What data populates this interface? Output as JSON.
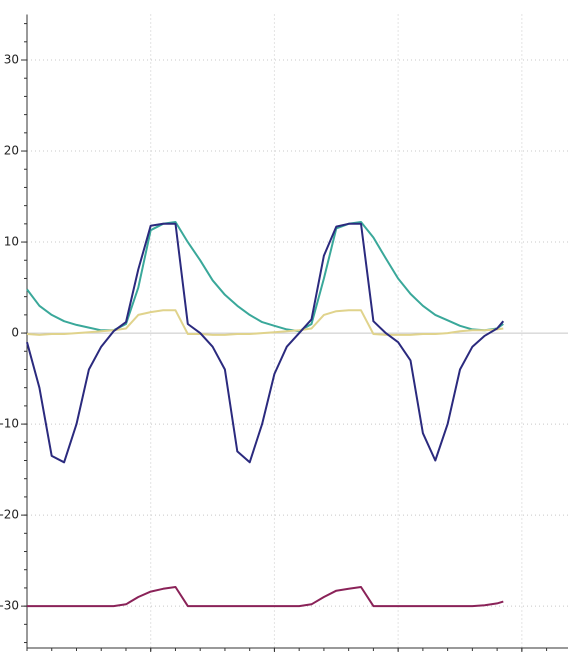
{
  "chart_data": {
    "type": "line",
    "x": [
      0,
      0.1,
      0.2,
      0.3,
      0.4,
      0.5,
      0.6,
      0.7,
      0.8,
      0.9,
      1.0,
      1.1,
      1.2,
      1.3,
      1.4,
      1.5,
      1.6,
      1.7,
      1.8,
      1.9,
      2.0,
      2.1,
      2.2,
      2.3,
      2.4,
      2.5,
      2.6,
      2.7,
      2.8,
      2.9,
      3.0,
      3.1,
      3.2,
      3.3,
      3.4,
      3.5,
      3.6,
      3.7,
      3.8,
      3.85
    ],
    "series": [
      {
        "color": "#3aa89a",
        "values": [
          4.8,
          3,
          2,
          1.3,
          0.9,
          0.6,
          0.3,
          0.3,
          1,
          5,
          11.3,
          12,
          12.2,
          10,
          8,
          5.8,
          4.2,
          3,
          2,
          1.2,
          0.8,
          0.4,
          0.2,
          1,
          6,
          11.5,
          12,
          12.2,
          10.5,
          8.2,
          6,
          4.3,
          3,
          2,
          1.4,
          0.8,
          0.4,
          0.3,
          0.5,
          1
        ]
      },
      {
        "color": "#e0d38c",
        "values": [
          -0.1,
          -0.2,
          -0.1,
          -0.1,
          0,
          0.1,
          0.2,
          0.3,
          0.5,
          2,
          2.3,
          2.5,
          2.5,
          -0.1,
          -0.1,
          -0.2,
          -0.2,
          -0.1,
          -0.1,
          0,
          0.1,
          0.2,
          0.3,
          0.5,
          2,
          2.4,
          2.5,
          2.5,
          -0.1,
          -0.2,
          -0.2,
          -0.2,
          -0.1,
          -0.1,
          0,
          0.2,
          0.3,
          0.3,
          0.4,
          0.5
        ]
      },
      {
        "color": "#2b2a7e",
        "values": [
          -1,
          -6,
          -13.5,
          -14.2,
          -10,
          -4,
          -1.5,
          0.2,
          1.2,
          7,
          11.8,
          12,
          12,
          1,
          0,
          -1.5,
          -4,
          -13,
          -14.2,
          -10,
          -4.5,
          -1.5,
          0,
          1.5,
          8.5,
          11.7,
          12,
          12,
          1.3,
          0,
          -1,
          -3,
          -11,
          -14,
          -10,
          -4,
          -1.5,
          -0.3,
          0.5,
          1.3
        ]
      },
      {
        "color": "#8a2258",
        "values": [
          -30,
          -30,
          -30,
          -30,
          -30,
          -30,
          -30,
          -30,
          -29.8,
          -29,
          -28.4,
          -28.1,
          -27.9,
          -30,
          -30,
          -30,
          -30,
          -30,
          -30,
          -30,
          -30,
          -30,
          -30,
          -29.8,
          -29,
          -28.3,
          -28.1,
          -27.9,
          -30,
          -30,
          -30,
          -30,
          -30,
          -30,
          -30,
          -30,
          -30,
          -29.9,
          -29.7,
          -29.5
        ]
      }
    ],
    "xlim": [
      0,
      4.373
    ],
    "xticks": [
      1,
      2,
      3,
      4
    ],
    "ylim": [
      -34.6,
      35
    ],
    "yticks": [
      -30,
      -20,
      -10,
      0,
      10,
      20,
      30
    ],
    "grid": true
  }
}
